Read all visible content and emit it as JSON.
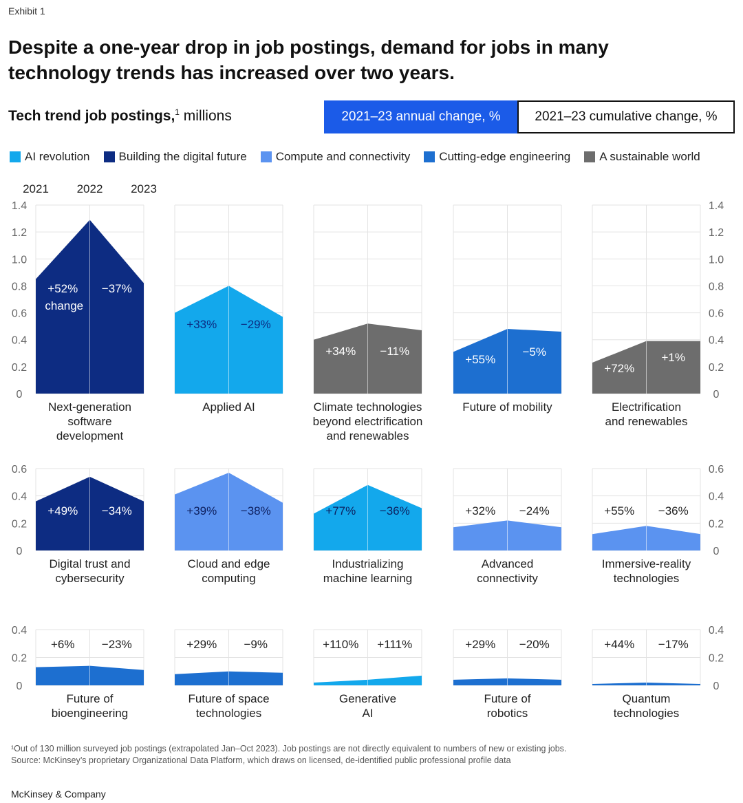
{
  "exhibit": "Exhibit 1",
  "title": "Despite a one-year drop in job postings, demand for jobs in many technology trends has increased over two years.",
  "subtitle": {
    "bold": "Tech trend job postings,",
    "sup": "1",
    "unit": " millions"
  },
  "toggles": {
    "active": "2021–23 annual change, %",
    "inactive": "2021–23 cumulative change, %"
  },
  "colors": {
    "ai_revolution": "#13a8ec",
    "building_digital_future": "#0d2c82",
    "compute_connectivity": "#5b93f0",
    "cutting_edge_engineering": "#1d6fd0",
    "sustainable_world": "#6d6d6d",
    "toggle_active": "#1b5be8"
  },
  "legend": [
    {
      "label": "AI revolution",
      "color": "#13a8ec"
    },
    {
      "label": "Building the digital future",
      "color": "#0d2c82"
    },
    {
      "label": "Compute and connectivity",
      "color": "#5b93f0"
    },
    {
      "label": "Cutting-edge engineering",
      "color": "#1d6fd0"
    },
    {
      "label": "A sustainable world",
      "color": "#6d6d6d"
    }
  ],
  "chart_data": {
    "type": "area",
    "x": [
      "2021",
      "2022",
      "2023"
    ],
    "ylabel": "millions",
    "rows": [
      {
        "ylim": [
          0,
          1.4
        ],
        "yticks": [
          "0",
          "0.2",
          "0.4",
          "0.6",
          "0.8",
          "1.0",
          "1.2",
          "1.4"
        ],
        "panels": [
          {
            "name": "Next-generation software development",
            "lines": [
              "Next-generation",
              "software",
              "development"
            ],
            "group": "Building the digital future",
            "color": "#0d2c82",
            "values": [
              0.85,
              1.29,
              0.82
            ],
            "change1": "+52%",
            "change1_extra": "change",
            "change2": "−37%"
          },
          {
            "name": "Applied AI",
            "lines": [
              "Applied AI"
            ],
            "group": "AI revolution",
            "color": "#13a8ec",
            "values": [
              0.6,
              0.8,
              0.57
            ],
            "change1": "+33%",
            "change2": "−29%"
          },
          {
            "name": "Climate technologies beyond electrification and renewables",
            "lines": [
              "Climate technologies",
              "beyond electrification",
              "and renewables"
            ],
            "group": "A sustainable world",
            "color": "#6d6d6d",
            "values": [
              0.4,
              0.52,
              0.47
            ],
            "change1": "+34%",
            "change2": "−11%"
          },
          {
            "name": "Future of mobility",
            "lines": [
              "Future of mobility"
            ],
            "group": "Cutting-edge engineering",
            "color": "#1d6fd0",
            "values": [
              0.31,
              0.48,
              0.46
            ],
            "change1": "+55%",
            "change2": "−5%"
          },
          {
            "name": "Electrification and renewables",
            "lines": [
              "Electrification",
              "and renewables"
            ],
            "group": "A sustainable world",
            "color": "#6d6d6d",
            "values": [
              0.23,
              0.39,
              0.39
            ],
            "change1": "+72%",
            "change2": "+1%"
          }
        ]
      },
      {
        "ylim": [
          0,
          0.6
        ],
        "yticks": [
          "0",
          "0.2",
          "0.4",
          "0.6"
        ],
        "panels": [
          {
            "name": "Digital trust and cybersecurity",
            "lines": [
              "Digital trust and",
              "cybersecurity"
            ],
            "group": "Building the digital future",
            "color": "#0d2c82",
            "values": [
              0.36,
              0.54,
              0.36
            ],
            "change1": "+49%",
            "change2": "−34%"
          },
          {
            "name": "Cloud and edge computing",
            "lines": [
              "Cloud and edge",
              "computing"
            ],
            "group": "Compute and connectivity",
            "color": "#5b93f0",
            "values": [
              0.41,
              0.57,
              0.35
            ],
            "change1": "+39%",
            "change2": "−38%"
          },
          {
            "name": "Industrializing machine learning",
            "lines": [
              "Industrializing",
              "machine learning"
            ],
            "group": "AI revolution",
            "color": "#13a8ec",
            "values": [
              0.27,
              0.48,
              0.31
            ],
            "change1": "+77%",
            "change2": "−36%"
          },
          {
            "name": "Advanced connectivity",
            "lines": [
              "Advanced",
              "connectivity"
            ],
            "group": "Compute and connectivity",
            "color": "#5b93f0",
            "values": [
              0.17,
              0.22,
              0.17
            ],
            "change1": "+32%",
            "change2": "−24%"
          },
          {
            "name": "Immersive-reality technologies",
            "lines": [
              "Immersive-reality",
              "technologies"
            ],
            "group": "Compute and connectivity",
            "color": "#5b93f0",
            "values": [
              0.12,
              0.18,
              0.12
            ],
            "change1": "+55%",
            "change2": "−36%"
          }
        ]
      },
      {
        "ylim": [
          0,
          0.4
        ],
        "yticks": [
          "0",
          "0.2",
          "0.4"
        ],
        "panels": [
          {
            "name": "Future of bioengineering",
            "lines": [
              "Future of",
              "bioengineering"
            ],
            "group": "Cutting-edge engineering",
            "color": "#1d6fd0",
            "values": [
              0.13,
              0.14,
              0.11
            ],
            "change1": "+6%",
            "change2": "−23%"
          },
          {
            "name": "Future of space technologies",
            "lines": [
              "Future of space",
              "technologies"
            ],
            "group": "Cutting-edge engineering",
            "color": "#1d6fd0",
            "values": [
              0.08,
              0.1,
              0.09
            ],
            "change1": "+29%",
            "change2": "−9%"
          },
          {
            "name": "Generative AI",
            "lines": [
              "Generative",
              "AI"
            ],
            "group": "AI revolution",
            "color": "#13a8ec",
            "values": [
              0.02,
              0.04,
              0.07
            ],
            "change1": "+110%",
            "change2": "+111%"
          },
          {
            "name": "Future of robotics",
            "lines": [
              "Future of",
              "robotics"
            ],
            "group": "Cutting-edge engineering",
            "color": "#1d6fd0",
            "values": [
              0.04,
              0.05,
              0.04
            ],
            "change1": "+29%",
            "change2": "−20%"
          },
          {
            "name": "Quantum technologies",
            "lines": [
              "Quantum",
              "technologies"
            ],
            "group": "Cutting-edge engineering",
            "color": "#1d6fd0",
            "values": [
              0.01,
              0.02,
              0.01
            ],
            "change1": "+44%",
            "change2": "−17%"
          }
        ]
      }
    ]
  },
  "footnote": {
    "line1": "¹Out of 130 million surveyed job postings (extrapolated Jan–Oct 2023). Job postings are not directly equivalent to numbers of new or existing jobs.",
    "line2": "Source: McKinsey’s proprietary Organizational Data Platform, which draws on licensed, de-identified public professional profile data"
  },
  "brand": "McKinsey & Company"
}
